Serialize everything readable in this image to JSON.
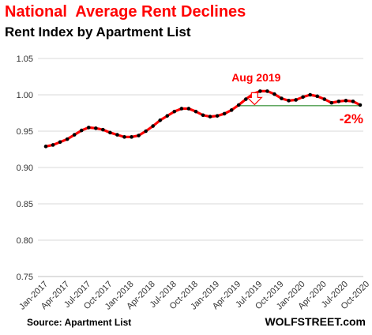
{
  "chart_data": {
    "type": "line",
    "title": "National  Average Rent Declines",
    "subtitle": "Rent Index by Apartment List",
    "source": "Source: Apartment List",
    "brand": "WOLFSTREET.com",
    "ylim": [
      0.75,
      1.05
    ],
    "yticks": [
      "0.75",
      "0.80",
      "0.85",
      "0.90",
      "0.95",
      "1.00",
      "1.05"
    ],
    "xtick_labels": [
      "Jan-2017",
      "Apr-2017",
      "Jul-2017",
      "Oct-2017",
      "Jan-2018",
      "Apr-2018",
      "Jul-2018",
      "Oct-2018",
      "Jan-2019",
      "Apr-2019",
      "Jul-2019",
      "Oct-2019",
      "Jan-2020",
      "Apr-2020",
      "Jul-2020",
      "Oct-2020"
    ],
    "series": [
      {
        "color": "#ff0000",
        "marker_color": "#000000",
        "values": [
          0.929,
          0.931,
          0.935,
          0.939,
          0.945,
          0.951,
          0.955,
          0.954,
          0.952,
          0.948,
          0.945,
          0.942,
          0.942,
          0.944,
          0.95,
          0.957,
          0.965,
          0.971,
          0.977,
          0.981,
          0.981,
          0.977,
          0.972,
          0.97,
          0.971,
          0.974,
          0.979,
          0.986,
          0.994,
          1.001,
          1.005,
          1.005,
          1.001,
          0.995,
          0.992,
          0.993,
          0.997,
          1.0,
          0.998,
          0.994,
          0.989,
          0.991,
          0.992,
          0.991,
          0.986
        ]
      }
    ],
    "reference_line": {
      "value": 0.985,
      "color": "#2e8b2e"
    },
    "annotations": {
      "peak_label": "Aug 2019",
      "change_label": "-2%"
    },
    "grid": true,
    "legend": "none",
    "colors": {
      "accent": "#ff0000",
      "grid": "#d9d9d9",
      "text": "#000000"
    }
  }
}
